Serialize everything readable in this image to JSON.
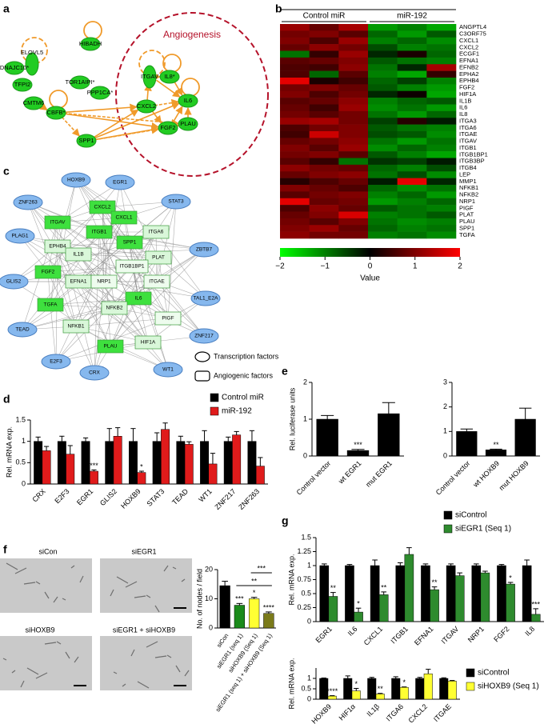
{
  "panel_labels": [
    "a",
    "b",
    "c",
    "d",
    "e",
    "f",
    "g"
  ],
  "panels": {
    "a": {
      "title": "Angiogenesis",
      "node_color": "#22cc22",
      "edge_color": "#f09a2a",
      "circle_color": "#b5122a",
      "nodes": [
        "ELOVL5",
        "HIBADH",
        "DNAJC10*",
        "TFPI2",
        "TOR1AIPI*",
        "PPP1CA*",
        "CMTM6",
        "CBFB*",
        "SPP1",
        "CXCL2",
        "FGF2",
        "PLAU",
        "IL6",
        "ITGAV",
        "IL8*"
      ]
    },
    "c": {
      "nodes": [
        {
          "label": "HOXB9",
          "kind": "tf",
          "color": "#86b8ee"
        },
        {
          "label": "EGR1",
          "kind": "tf",
          "color": "#86b8ee"
        },
        {
          "label": "ZNF263",
          "kind": "tf",
          "color": "#86b8ee"
        },
        {
          "label": "STAT3",
          "kind": "tf",
          "color": "#86b8ee"
        },
        {
          "label": "PLAG1",
          "kind": "tf",
          "color": "#86b8ee"
        },
        {
          "label": "ZBTB7",
          "kind": "tf",
          "color": "#86b8ee"
        },
        {
          "label": "GLIS2",
          "kind": "tf",
          "color": "#86b8ee"
        },
        {
          "label": "TAL1_E2A",
          "kind": "tf",
          "color": "#86b8ee"
        },
        {
          "label": "TEAD",
          "kind": "tf",
          "color": "#86b8ee"
        },
        {
          "label": "ZNF217",
          "kind": "tf",
          "color": "#86b8ee"
        },
        {
          "label": "E2F3",
          "kind": "tf",
          "color": "#86b8ee"
        },
        {
          "label": "CRX",
          "kind": "tf",
          "color": "#86b8ee"
        },
        {
          "label": "WT1",
          "kind": "tf",
          "color": "#86b8ee"
        },
        {
          "label": "CXCL2",
          "kind": "factor",
          "color": "#3ee03e"
        },
        {
          "label": "ITGAV",
          "kind": "factor",
          "color": "#3ee03e"
        },
        {
          "label": "CXCL1",
          "kind": "factor",
          "color": "#3ee03e"
        },
        {
          "label": "ITGB1",
          "kind": "factor",
          "color": "#3ee03e"
        },
        {
          "label": "ITGA6",
          "kind": "factor",
          "color": "#d9f7d9"
        },
        {
          "label": "SPP1",
          "kind": "factor",
          "color": "#3ee03e"
        },
        {
          "label": "EPHB4",
          "kind": "factor",
          "color": "#d9f7d9"
        },
        {
          "label": "IL1B",
          "kind": "factor",
          "color": "#d9f7d9"
        },
        {
          "label": "PLAT",
          "kind": "factor",
          "color": "#d9f7d9"
        },
        {
          "label": "ITGB1BP1",
          "kind": "factor",
          "color": "#eefcee"
        },
        {
          "label": "FGF2",
          "kind": "factor",
          "color": "#3ee03e"
        },
        {
          "label": "EFNA1",
          "kind": "factor",
          "color": "#d9f7d9"
        },
        {
          "label": "NRP1",
          "kind": "factor",
          "color": "#eefcee"
        },
        {
          "label": "ITGAE",
          "kind": "factor",
          "color": "#eefcee"
        },
        {
          "label": "IL6",
          "kind": "factor",
          "color": "#3ee03e"
        },
        {
          "label": "TGFA",
          "kind": "factor",
          "color": "#3ee03e"
        },
        {
          "label": "NFKB2",
          "kind": "factor",
          "color": "#d9f7d9"
        },
        {
          "label": "PIGF",
          "kind": "factor",
          "color": "#eefcee"
        },
        {
          "label": "NFKB1",
          "kind": "factor",
          "color": "#d9f7d9"
        },
        {
          "label": "HIF1A",
          "kind": "factor",
          "color": "#d9f7d9"
        },
        {
          "label": "PLAU",
          "kind": "factor",
          "color": "#3ee03e"
        }
      ],
      "legend": [
        "Transcription factors",
        "Angiogenic factors"
      ]
    },
    "f": {
      "images": [
        "siCon",
        "siEGR1",
        "siHOXB9",
        "siEGR1 + siHOXB9"
      ]
    }
  },
  "chart_data": [
    {
      "type": "heatmap",
      "column_groups": [
        "Control miR",
        "miR-192"
      ],
      "categories": [
        "ANGPTL4",
        "C3ORF75",
        "CXCL1",
        "CXCL2",
        "ECGF1",
        "EFNA1",
        "EFNB2",
        "EPHA2",
        "EPHB4",
        "FGF2",
        "HIF1A",
        "IL1B",
        "IL6",
        "IL8",
        "ITGA3",
        "ITGA6",
        "ITGAE",
        "ITGAV",
        "ITGB1",
        "ITGB1BP1",
        "ITGB3BP",
        "ITGB4",
        "LEP",
        "MMP1",
        "NFKB1",
        "NFKB2",
        "NRP1",
        "PIGF",
        "PLAT",
        "PLAU",
        "SPP1",
        "TGFA"
      ],
      "values": [
        [
          1.2,
          0.8,
          1.3,
          -1.2,
          -1.0,
          -1.3
        ],
        [
          0.9,
          1.0,
          0.7,
          -0.8,
          -1.2,
          -0.7
        ],
        [
          1.0,
          0.6,
          1.2,
          -1.0,
          -0.8,
          -1.1
        ],
        [
          0.8,
          1.1,
          0.9,
          -0.6,
          -1.0,
          -0.9
        ],
        [
          -0.9,
          0.4,
          1.2,
          -0.3,
          0.2,
          -0.8
        ],
        [
          0.7,
          0.8,
          1.0,
          -0.7,
          -0.9,
          -1.0
        ],
        [
          0.6,
          0.5,
          1.1,
          -0.9,
          -0.3,
          1.3
        ],
        [
          0.6,
          -0.8,
          0.7,
          -1.0,
          -1.3,
          0.4
        ],
        [
          1.8,
          0.2,
          0.5,
          -0.8,
          -0.5,
          -1.0
        ],
        [
          0.9,
          1.0,
          0.8,
          -0.7,
          -1.0,
          -1.2
        ],
        [
          1.0,
          0.6,
          0.9,
          -0.3,
          0.1,
          -1.3
        ],
        [
          0.7,
          0.8,
          1.1,
          -1.0,
          -0.8,
          -0.7
        ],
        [
          0.8,
          0.5,
          1.2,
          -1.1,
          -0.9,
          -1.2
        ],
        [
          0.9,
          0.7,
          0.9,
          -0.9,
          -1.2,
          -0.8
        ],
        [
          1.2,
          1.3,
          0.9,
          -0.5,
          0.3,
          -0.2
        ],
        [
          0.6,
          0.9,
          1.0,
          -0.7,
          -0.9,
          -1.0
        ],
        [
          0.5,
          1.6,
          1.0,
          -0.6,
          -0.7,
          -1.1
        ],
        [
          0.8,
          0.9,
          1.1,
          -0.9,
          -1.2,
          -0.9
        ],
        [
          1.0,
          0.7,
          1.2,
          -1.1,
          -0.8,
          -1.0
        ],
        [
          0.9,
          1.0,
          0.7,
          -0.7,
          -1.0,
          -1.3
        ],
        [
          0.7,
          0.4,
          -0.9,
          -0.4,
          -0.5,
          -0.2
        ],
        [
          1.1,
          0.9,
          0.8,
          -0.8,
          -1.0,
          -0.6
        ],
        [
          0.8,
          1.0,
          1.1,
          -0.9,
          -0.6,
          -1.1
        ],
        [
          0.3,
          0.6,
          0.8,
          -0.2,
          1.8,
          -0.3
        ],
        [
          1.0,
          0.8,
          0.6,
          -0.8,
          -1.1,
          -0.9
        ],
        [
          0.7,
          0.9,
          1.0,
          -1.0,
          -0.8,
          -1.2
        ],
        [
          1.8,
          0.8,
          0.9,
          -1.2,
          -1.0,
          -0.8
        ],
        [
          0.6,
          1.1,
          0.8,
          -0.7,
          -0.9,
          -1.0
        ],
        [
          0.8,
          1.0,
          1.7,
          -1.0,
          -0.9,
          -0.7
        ],
        [
          0.9,
          0.7,
          1.0,
          -0.9,
          -1.1,
          -1.0
        ],
        [
          1.0,
          1.2,
          0.8,
          -0.8,
          -1.0,
          -0.9
        ],
        [
          1.1,
          0.9,
          0.9,
          -1.0,
          -0.9,
          -1.1
        ]
      ],
      "colormap": [
        "#00ff00",
        "#000000",
        "#ff0000"
      ],
      "clim": [
        -2,
        2
      ],
      "colorbar_ticks": [
        {
          "value": -2,
          "label": "−2"
        },
        {
          "value": -1,
          "label": "−1"
        },
        0,
        1,
        2
      ],
      "colorbar_label": "Value"
    },
    {
      "type": "bar",
      "ylabel": "Rel. mRNA exp.",
      "categories": [
        "CRX",
        "E2F3",
        "EGR1",
        "GLIS2",
        "HOXB9",
        "STAT3",
        "TEAD",
        "WT1",
        "ZNF217",
        "ZNF263"
      ],
      "series": [
        {
          "name": "Control miR",
          "color": "#000000",
          "values": [
            1,
            1,
            1,
            1,
            1,
            1,
            1,
            1,
            1,
            1
          ],
          "errors": [
            0.1,
            0.12,
            0.08,
            0.3,
            0.3,
            0.2,
            0.12,
            0.25,
            0.1,
            0.25
          ]
        },
        {
          "name": "miR-192",
          "color": "#e01b1b",
          "values": [
            0.78,
            0.7,
            0.3,
            1.12,
            0.27,
            1.28,
            0.93,
            0.47,
            1.15,
            0.42
          ],
          "errors": [
            0.1,
            0.2,
            0.03,
            0.2,
            0.03,
            0.15,
            0.06,
            0.25,
            0.08,
            0.2
          ],
          "significance": [
            null,
            null,
            "***",
            null,
            "*",
            null,
            null,
            null,
            null,
            null
          ]
        }
      ],
      "ylim": [
        0,
        1.5
      ],
      "yticks": [
        0,
        0.5,
        1,
        1.5
      ],
      "legend": "above-right"
    },
    {
      "type": "bar",
      "ylabel": "Rel. luciferase units",
      "categories": [
        "Control vector",
        "wt EGR1",
        "mut EGR1"
      ],
      "series": [
        {
          "color": "#000000",
          "values": [
            1,
            0.15,
            1.15
          ],
          "errors": [
            0.1,
            0.03,
            0.3
          ],
          "significance": [
            null,
            "***",
            null
          ]
        }
      ],
      "ylim": [
        0,
        2
      ],
      "yticks": [
        0,
        1,
        2
      ]
    },
    {
      "type": "bar",
      "categories": [
        "Control vector",
        "wt HOXB9",
        "mut HOXB9"
      ],
      "series": [
        {
          "color": "#000000",
          "values": [
            1,
            0.25,
            1.5
          ],
          "errors": [
            0.1,
            0.03,
            0.45
          ],
          "significance": [
            null,
            "**",
            null
          ]
        }
      ],
      "ylim": [
        0,
        3
      ],
      "yticks": [
        0,
        1,
        2,
        3
      ]
    },
    {
      "type": "bar",
      "ylabel": "No. of nodes / field",
      "categories": [
        "siCon",
        "siEGR1 (seq 1)",
        "siHOXB9 (Seq 1)",
        "siEGR1 (seq 1) + siHOXB9 (Seq 1)"
      ],
      "series": [
        {
          "values": [
            14.5,
            7.8,
            10,
            5
          ],
          "errors": [
            1.5,
            0.6,
            0.5,
            0.5
          ],
          "colors": [
            "#000000",
            "#1a8a1a",
            "#ffff33",
            "#7a7a1a"
          ],
          "significance": [
            null,
            "***",
            "*",
            "****"
          ]
        }
      ],
      "comparisons": [
        "***",
        "**"
      ],
      "ylim": [
        0,
        20
      ],
      "yticks": [
        0,
        10,
        20
      ]
    },
    {
      "type": "bar",
      "ylabel": "Rel. mRNA exp.",
      "categories": [
        "EGR1",
        "IL6",
        "CXCL1",
        "ITGB1",
        "EFNA1",
        "ITGAV",
        "NRP1",
        "FGF2",
        "IL8"
      ],
      "series": [
        {
          "name": "siControl",
          "color": "#000000",
          "values": [
            1,
            1,
            1,
            1,
            1,
            1,
            1,
            1,
            1
          ],
          "errors": [
            0.03,
            0.02,
            0.1,
            0.05,
            0.03,
            0.03,
            0.03,
            0.02,
            0.1
          ]
        },
        {
          "name": "siEGR1 (Seq 1)",
          "color": "#2e8b2e",
          "values": [
            0.45,
            0.17,
            0.48,
            1.2,
            0.57,
            0.82,
            0.87,
            0.67,
            0.13
          ],
          "errors": [
            0.07,
            0.07,
            0.05,
            0.12,
            0.05,
            0.05,
            0.03,
            0.03,
            0.1
          ],
          "significance": [
            "**",
            "*",
            "**",
            null,
            "**",
            null,
            null,
            "*",
            "***"
          ]
        }
      ],
      "ylim": [
        0,
        1.5
      ],
      "yticks": [
        0,
        0.25,
        0.5,
        0.75,
        1,
        1.25,
        1.5
      ],
      "legend": "above-right"
    },
    {
      "type": "bar",
      "ylabel": "Rel. mRNA exp.",
      "categories": [
        "HOXB9",
        "HIF1α",
        "IL1β",
        "ITGA6",
        "CXCL2",
        "ITGAE"
      ],
      "series": [
        {
          "name": "siControl",
          "color": "#000000",
          "values": [
            1,
            1,
            1,
            1,
            1,
            1
          ],
          "errors": [
            0.02,
            0.12,
            0.05,
            0.08,
            0.05,
            0.03
          ]
        },
        {
          "name": "siHOXB9 (Seq 1)",
          "color": "#ffff33",
          "values": [
            0.15,
            0.4,
            0.25,
            0.57,
            1.22,
            0.87
          ],
          "errors": [
            0.02,
            0.12,
            0.03,
            0.02,
            0.22,
            0.03
          ],
          "significance": [
            "****",
            "*",
            "**",
            "*",
            null,
            null
          ]
        }
      ],
      "ylim": [
        0,
        1.5
      ],
      "yticks": [
        0,
        0.5,
        1
      ],
      "legend": "right"
    }
  ]
}
